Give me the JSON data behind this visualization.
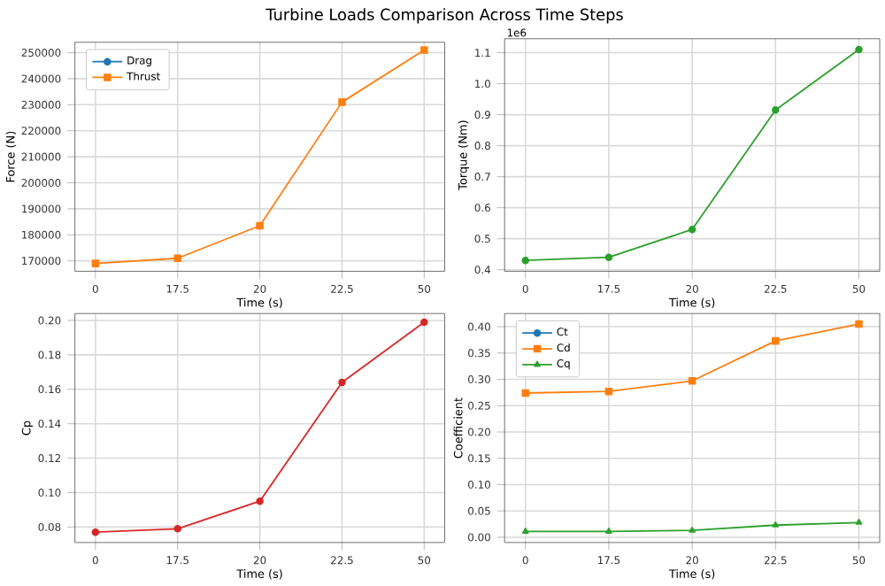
{
  "chart_data": [
    {
      "type": "line",
      "title": "Turbine Loads Comparison Across Time Steps",
      "xlabel": "Time (s)",
      "ylabel": "Force (N)",
      "categories": [
        "0",
        "17.5",
        "20",
        "22.5",
        "50"
      ],
      "ylim": [
        166000,
        254000
      ],
      "yticks": [
        170000,
        180000,
        190000,
        200000,
        210000,
        220000,
        230000,
        240000,
        250000
      ],
      "grid": true,
      "legend": "top left",
      "series": [
        {
          "name": "Drag",
          "color": "#1f77b4",
          "marker": "circle",
          "values": [
            null,
            null,
            null,
            null,
            null
          ]
        },
        {
          "name": "Thrust",
          "color": "#ff7f0e",
          "marker": "square",
          "values": [
            169000,
            171000,
            183500,
            231000,
            251000
          ]
        }
      ]
    },
    {
      "type": "line",
      "xlabel": "Time (s)",
      "ylabel": "Torque (Nm)",
      "annotations": [
        "1e6"
      ],
      "categories": [
        "0",
        "17.5",
        "20",
        "22.5",
        "50"
      ],
      "ylim": [
        0.395,
        1.145
      ],
      "yticks": [
        0.4,
        0.5,
        0.6,
        0.7,
        0.8,
        0.9,
        {
          "value": 1.0,
          "label": "1.0"
        },
        1.1
      ],
      "grid": true,
      "series": [
        {
          "color": "#2ca02c",
          "marker": "circle",
          "values": [
            0.43,
            0.44,
            0.53,
            0.915,
            1.11
          ]
        }
      ]
    },
    {
      "type": "line",
      "xlabel": "Time (s)",
      "ylabel": "Cp",
      "categories": [
        "0",
        "17.5",
        "20",
        "22.5",
        "50"
      ],
      "ylim": [
        0.071,
        0.204
      ],
      "yticks": [
        0.08,
        {
          "value": 0.1,
          "label": "0.10"
        },
        0.12,
        0.14,
        0.16,
        0.18,
        {
          "value": 0.2,
          "label": "0.20"
        }
      ],
      "grid": true,
      "series": [
        {
          "color": "#d62728",
          "marker": "circle",
          "values": [
            0.077,
            0.079,
            0.095,
            0.164,
            0.199
          ]
        }
      ]
    },
    {
      "type": "line",
      "xlabel": "Time (s)",
      "ylabel": "Coefficient",
      "categories": [
        "0",
        "17.5",
        "20",
        "22.5",
        "50"
      ],
      "ylim": [
        -0.01,
        0.425
      ],
      "yticks": [
        {
          "value": 0.0,
          "label": "0.00"
        },
        0.05,
        {
          "value": 0.1,
          "label": "0.10"
        },
        0.15,
        {
          "value": 0.2,
          "label": "0.20"
        },
        0.25,
        {
          "value": 0.3,
          "label": "0.30"
        },
        0.35,
        {
          "value": 0.4,
          "label": "0.40"
        }
      ],
      "grid": true,
      "legend": "top left",
      "series": [
        {
          "name": "Ct",
          "color": "#1f77b4",
          "marker": "circle",
          "values": [
            null,
            null,
            null,
            null,
            null
          ]
        },
        {
          "name": "Cd",
          "color": "#ff7f0e",
          "marker": "square",
          "values": [
            0.274,
            0.277,
            0.297,
            0.373,
            0.405
          ]
        },
        {
          "name": "Cq",
          "color": "#2ca02c",
          "marker": "triangle",
          "values": [
            0.011,
            0.011,
            0.013,
            0.023,
            0.028
          ]
        }
      ]
    }
  ]
}
